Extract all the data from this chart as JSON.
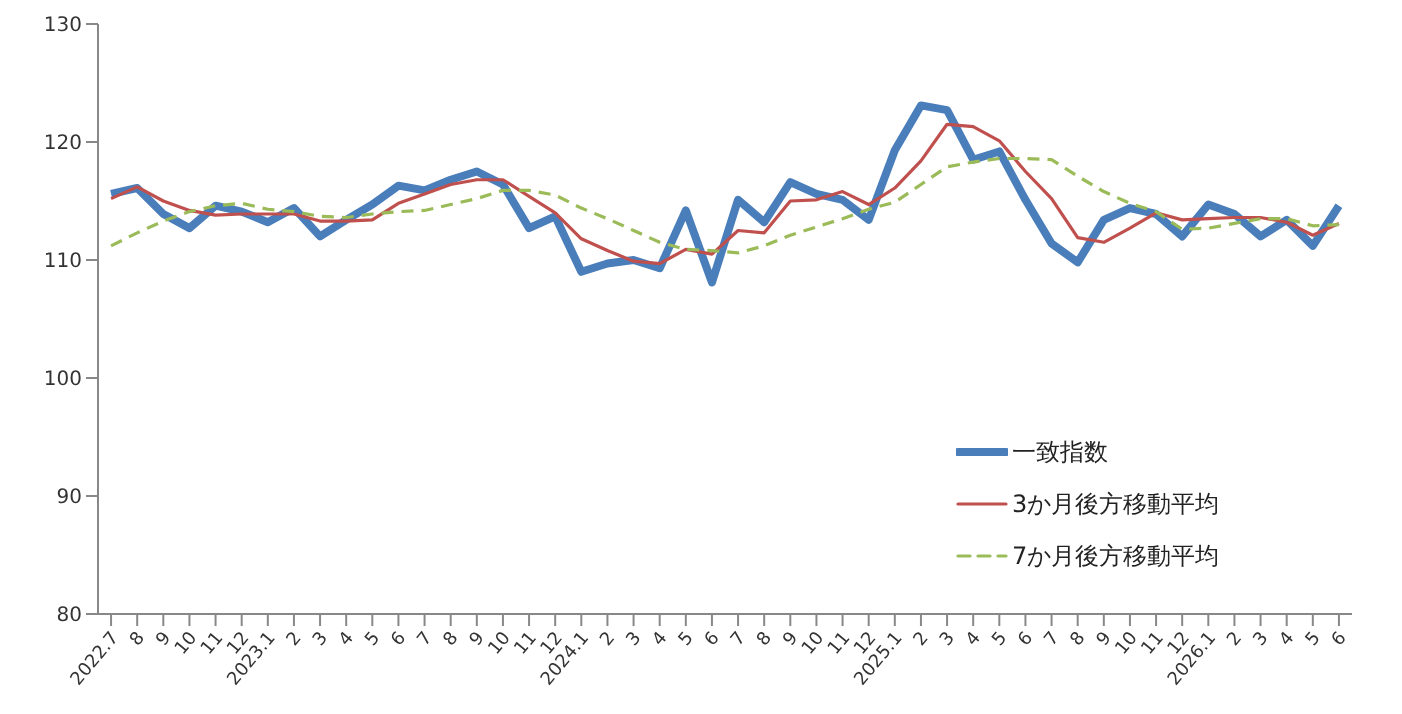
{
  "chart_data": {
    "type": "line",
    "categories": [
      "2022.7",
      "8",
      "9",
      "10",
      "11",
      "12",
      "2023.1",
      "2",
      "3",
      "4",
      "5",
      "6",
      "7",
      "8",
      "9",
      "10",
      "11",
      "12",
      "2024.1",
      "2",
      "3",
      "4",
      "5",
      "6",
      "7",
      "8",
      "9",
      "10",
      "11",
      "12",
      "2025.1",
      "2",
      "3",
      "4",
      "5",
      "6",
      "7",
      "8",
      "9",
      "10",
      "11",
      "12",
      "2026.1",
      "2",
      "3",
      "4",
      "5",
      "6"
    ],
    "series": [
      {
        "name": "一致指数",
        "color": "#4a7ebb",
        "line_style": "solid",
        "values": [
          115.6,
          116.1,
          113.9,
          112.7,
          114.6,
          114.1,
          113.2,
          114.4,
          112.0,
          113.4,
          114.7,
          116.3,
          115.9,
          116.8,
          117.5,
          116.4,
          112.7,
          113.7,
          109.0,
          109.7,
          110.0,
          109.3,
          114.2,
          108.1,
          115.1,
          113.2,
          116.6,
          115.6,
          115.1,
          113.4,
          119.3,
          123.1,
          122.7,
          118.5,
          119.2,
          115.1,
          111.4,
          109.8,
          113.4,
          114.4,
          113.9,
          112.0,
          114.7,
          113.9,
          112.0,
          113.4,
          111.2,
          114.6
        ]
      },
      {
        "name": "3か月後方移動平均",
        "color": "#c0504d",
        "line_style": "solid",
        "values": [
          115.2,
          116.2,
          115.0,
          114.2,
          113.8,
          113.9,
          113.9,
          113.9,
          113.3,
          113.3,
          113.4,
          114.8,
          115.6,
          116.4,
          116.8,
          116.8,
          115.4,
          114.0,
          111.8,
          110.8,
          109.9,
          109.7,
          110.9,
          110.5,
          112.5,
          112.3,
          115.0,
          115.1,
          115.8,
          114.7,
          116.1,
          118.4,
          121.5,
          121.3,
          120.1,
          117.5,
          115.2,
          111.9,
          111.5,
          112.7,
          114.0,
          113.4,
          113.5,
          113.6,
          113.6,
          113.2,
          112.1,
          113.1
        ]
      },
      {
        "name": "7か月後方移動平均",
        "color": "#9bbb59",
        "line_style": "dashed",
        "values": [
          111.2,
          112.3,
          113.3,
          114.1,
          114.6,
          114.8,
          114.3,
          114.1,
          113.7,
          113.6,
          113.9,
          114.1,
          114.2,
          114.7,
          115.2,
          115.9,
          115.9,
          115.5,
          114.4,
          113.5,
          112.5,
          111.5,
          110.9,
          110.8,
          110.6,
          111.2,
          112.1,
          112.8,
          113.5,
          114.3,
          114.9,
          116.4,
          117.9,
          118.3,
          118.6,
          118.6,
          118.5,
          117.1,
          115.8,
          114.8,
          114.1,
          112.6,
          112.7,
          113.1,
          113.5,
          113.5,
          112.9,
          113.0
        ]
      }
    ],
    "ylim": [
      80,
      130
    ],
    "yticks": [
      80,
      90,
      100,
      110,
      120,
      130
    ],
    "grid": false,
    "legend": "bottom right",
    "marker": "none"
  }
}
